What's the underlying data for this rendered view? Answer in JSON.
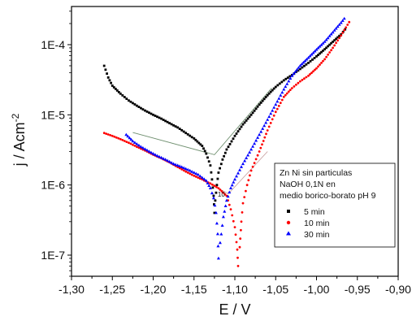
{
  "chart_data": {
    "type": "scatter",
    "title": "",
    "xlabel": "E / V",
    "ylabel": "j / Acm",
    "ylabel_superscript": "-2",
    "xlim": [
      -1.3,
      -0.9
    ],
    "ylim": [
      5e-08,
      0.00035
    ],
    "y_scale": "log",
    "x_ticks": [
      -1.3,
      -1.25,
      -1.2,
      -1.15,
      -1.1,
      -1.05,
      -1.0,
      -0.95,
      -0.9
    ],
    "x_tick_labels": [
      "-1,30",
      "-1,25",
      "-1,20",
      "-1,15",
      "-1,10",
      "-1,05",
      "-1,00",
      "-0,95",
      "-0,90"
    ],
    "y_ticks": [
      1e-07,
      1e-06,
      1e-05,
      0.0001
    ],
    "y_tick_labels": [
      "1E-7",
      "1E-6",
      "1E-5",
      "1E-4"
    ],
    "grid": false,
    "legend": {
      "placement": "right-center",
      "title_lines": [
        "Zn Ni sin particulas",
        "NaOH 0,1N en",
        "medio borico-borato pH 9"
      ],
      "entries": [
        {
          "label": "5   min",
          "color": "#000000",
          "marker": "square"
        },
        {
          "label": "10 min",
          "color": "#ff0000",
          "marker": "circle"
        },
        {
          "label": "30 min",
          "color": "#0000ff",
          "marker": "triangle"
        }
      ]
    },
    "annotations": [
      {
        "text": "10",
        "x": -1.121,
        "y": 6.8e-07
      }
    ],
    "tafel_lines": [
      {
        "color": "#6f8f6f",
        "points": [
          [
            -1.225,
            5.6e-06
          ],
          [
            -1.125,
            2.7e-06
          ],
          [
            -1.055,
            2.4e-05
          ]
        ]
      },
      {
        "color": "#c8a0a0",
        "points": [
          [
            -1.185,
            2.3e-06
          ],
          [
            -1.108,
            7.5e-07
          ],
          [
            -1.06,
            3e-06
          ]
        ]
      }
    ],
    "series": [
      {
        "name": "5   min",
        "color": "#000000",
        "marker": "square",
        "cathodic": [
          [
            -1.26,
            5e-05
          ],
          [
            -1.255,
            3.4e-05
          ],
          [
            -1.25,
            2.6e-05
          ],
          [
            -1.24,
            2e-05
          ],
          [
            -1.23,
            1.6e-05
          ],
          [
            -1.22,
            1.35e-05
          ],
          [
            -1.21,
            1.15e-05
          ],
          [
            -1.2,
            1e-05
          ],
          [
            -1.19,
            8.8e-06
          ],
          [
            -1.18,
            7.6e-06
          ],
          [
            -1.17,
            6.6e-06
          ],
          [
            -1.16,
            5.5e-06
          ],
          [
            -1.15,
            4.6e-06
          ],
          [
            -1.14,
            3.6e-06
          ],
          [
            -1.135,
            2.8e-06
          ],
          [
            -1.13,
            1.9e-06
          ],
          [
            -1.128,
            1.2e-06
          ],
          [
            -1.126,
            7e-07
          ],
          [
            -1.125,
            4e-07
          ]
        ],
        "anodic": [
          [
            -1.124,
            6e-07
          ],
          [
            -1.122,
            1e-06
          ],
          [
            -1.12,
            1.5e-06
          ],
          [
            -1.115,
            2.3e-06
          ],
          [
            -1.11,
            3.2e-06
          ],
          [
            -1.1,
            5e-06
          ],
          [
            -1.09,
            7.3e-06
          ],
          [
            -1.08,
            1e-05
          ],
          [
            -1.07,
            1.4e-05
          ],
          [
            -1.06,
            1.9e-05
          ],
          [
            -1.05,
            2.5e-05
          ],
          [
            -1.04,
            3.1e-05
          ],
          [
            -1.03,
            3.7e-05
          ],
          [
            -1.02,
            4.5e-05
          ],
          [
            -1.01,
            5.5e-05
          ],
          [
            -1.0,
            6.8e-05
          ],
          [
            -0.99,
            8.6e-05
          ],
          [
            -0.98,
            0.00011
          ],
          [
            -0.97,
            0.00014
          ],
          [
            -0.965,
            0.000165
          ]
        ]
      },
      {
        "name": "10 min",
        "color": "#ff0000",
        "marker": "circle",
        "cathodic": [
          [
            -1.26,
            5.5e-06
          ],
          [
            -1.25,
            5e-06
          ],
          [
            -1.24,
            4.5e-06
          ],
          [
            -1.23,
            4e-06
          ],
          [
            -1.22,
            3.5e-06
          ],
          [
            -1.21,
            3.1e-06
          ],
          [
            -1.2,
            2.7e-06
          ],
          [
            -1.19,
            2.4e-06
          ],
          [
            -1.18,
            2.1e-06
          ],
          [
            -1.17,
            1.8e-06
          ],
          [
            -1.16,
            1.55e-06
          ],
          [
            -1.15,
            1.35e-06
          ],
          [
            -1.14,
            1.2e-06
          ],
          [
            -1.13,
            1.05e-06
          ],
          [
            -1.12,
            9e-07
          ],
          [
            -1.11,
            7e-07
          ],
          [
            -1.105,
            4.5e-07
          ],
          [
            -1.1,
            2.5e-07
          ],
          [
            -1.097,
            1.2e-07
          ],
          [
            -1.096,
            7e-08
          ]
        ],
        "anodic": [
          [
            -1.094,
            1.3e-07
          ],
          [
            -1.092,
            3e-07
          ],
          [
            -1.09,
            5.5e-07
          ],
          [
            -1.085,
            1e-06
          ],
          [
            -1.08,
            1.6e-06
          ],
          [
            -1.07,
            3e-06
          ],
          [
            -1.06,
            6e-06
          ],
          [
            -1.05,
            1.1e-05
          ],
          [
            -1.04,
            1.8e-05
          ],
          [
            -1.03,
            2.4e-05
          ],
          [
            -1.02,
            3e-05
          ],
          [
            -1.01,
            3.6e-05
          ],
          [
            -1.0,
            4.6e-05
          ],
          [
            -0.99,
            6.2e-05
          ],
          [
            -0.98,
            9e-05
          ],
          [
            -0.97,
            0.000135
          ],
          [
            -0.96,
            0.00021
          ]
        ]
      },
      {
        "name": "30 min",
        "color": "#0000ff",
        "marker": "triangle",
        "cathodic": [
          [
            -1.233,
            5.2e-06
          ],
          [
            -1.225,
            4.2e-06
          ],
          [
            -1.215,
            3.5e-06
          ],
          [
            -1.205,
            3e-06
          ],
          [
            -1.195,
            2.6e-06
          ],
          [
            -1.185,
            2.3e-06
          ],
          [
            -1.175,
            2e-06
          ],
          [
            -1.165,
            1.8e-06
          ],
          [
            -1.155,
            1.6e-06
          ],
          [
            -1.145,
            1.4e-06
          ],
          [
            -1.135,
            1.15e-06
          ],
          [
            -1.13,
            9e-07
          ],
          [
            -1.126,
            6.5e-07
          ],
          [
            -1.123,
            4e-07
          ],
          [
            -1.121,
            2e-07
          ],
          [
            -1.12,
            9e-08
          ]
        ],
        "anodic": [
          [
            -1.118,
            1.5e-07
          ],
          [
            -1.114,
            3.5e-07
          ],
          [
            -1.11,
            6e-07
          ],
          [
            -1.105,
            9e-07
          ],
          [
            -1.1,
            1.2e-06
          ],
          [
            -1.09,
            2e-06
          ],
          [
            -1.08,
            3.2e-06
          ],
          [
            -1.07,
            5.2e-06
          ],
          [
            -1.06,
            8.5e-06
          ],
          [
            -1.05,
            1.4e-05
          ],
          [
            -1.04,
            2.3e-05
          ],
          [
            -1.03,
            3.6e-05
          ],
          [
            -1.02,
            5e-05
          ],
          [
            -1.01,
            6.5e-05
          ],
          [
            -1.0,
            8.5e-05
          ],
          [
            -0.99,
            0.00011
          ],
          [
            -0.98,
            0.00015
          ],
          [
            -0.97,
            0.000205
          ],
          [
            -0.966,
            0.000235
          ]
        ]
      }
    ]
  }
}
